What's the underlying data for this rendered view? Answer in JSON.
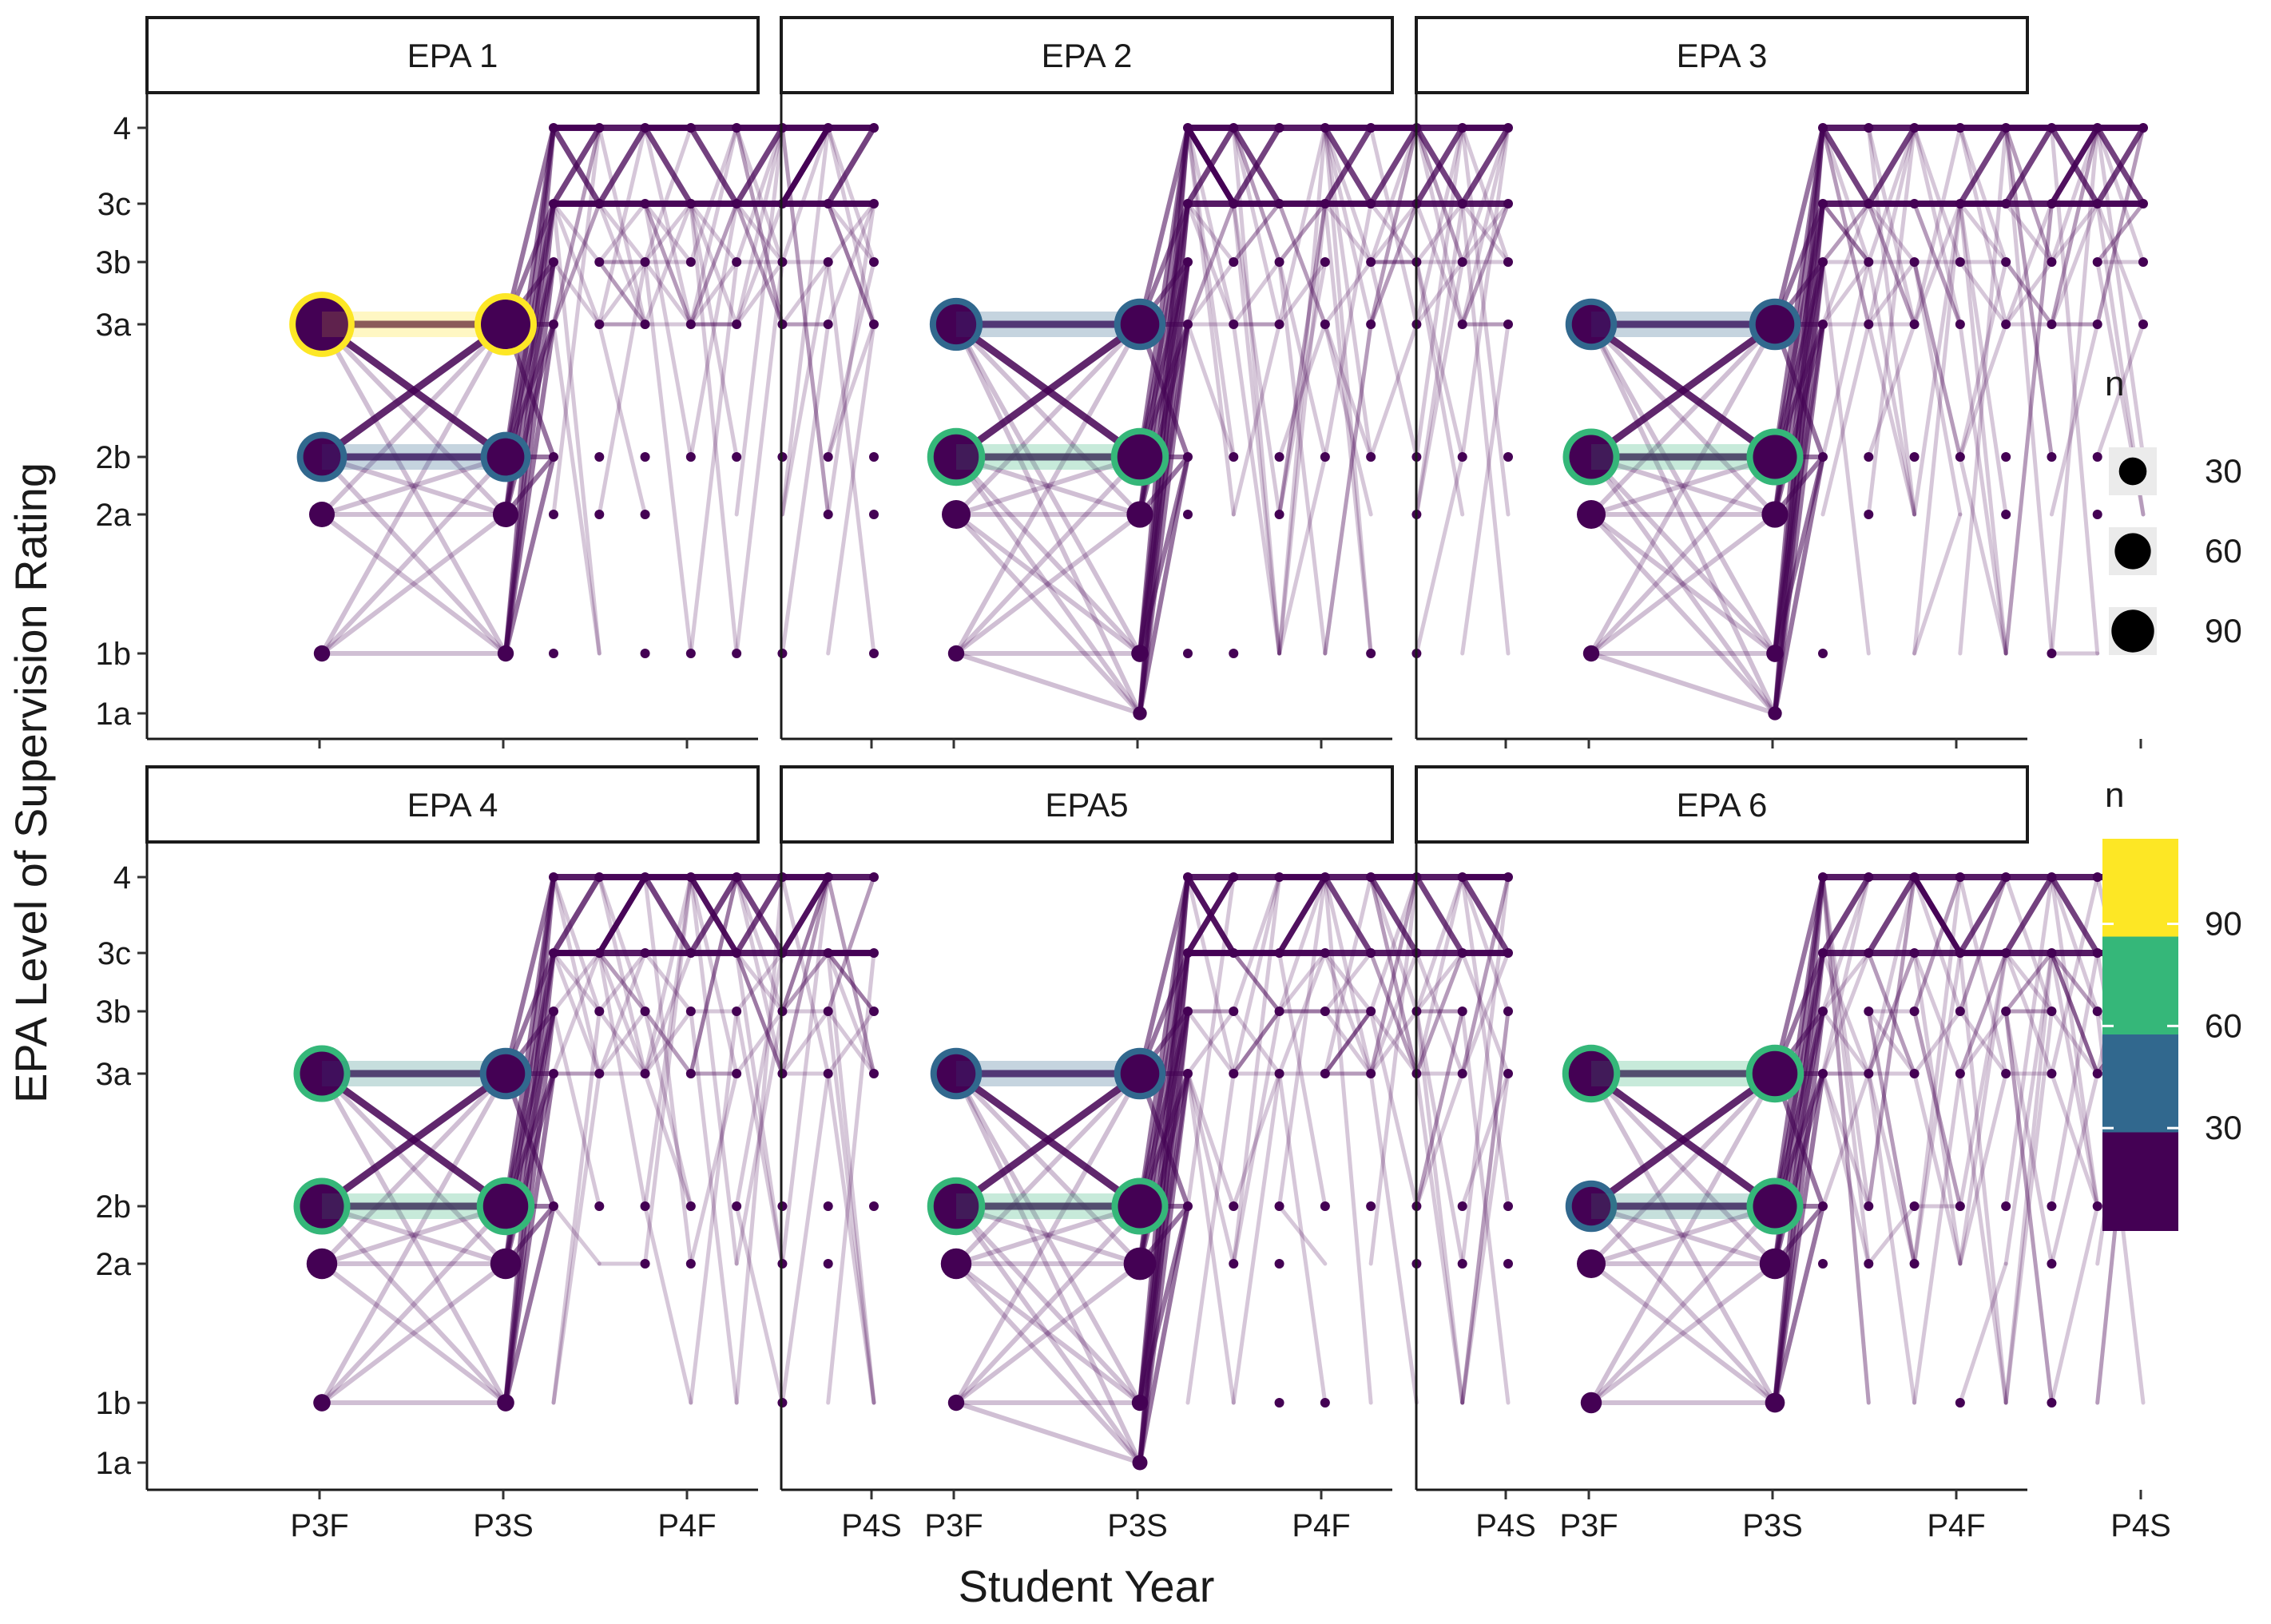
{
  "chart_data": {
    "type": "line",
    "subtype": "faceted trajectory (parallel coordinates) plot with sized and colored points",
    "xlabel": "Student Year",
    "ylabel": "EPA Level of Supervision Rating",
    "x_categories": [
      "P3F",
      "P3S",
      "P4F",
      "P4S"
    ],
    "y_levels": [
      "1a",
      "1b",
      "2a",
      "2b",
      "3a",
      "3b",
      "3c",
      "4"
    ],
    "legend_size": {
      "title": "n",
      "entries": [
        "30",
        "60",
        "90"
      ],
      "values": [
        30,
        60,
        90
      ]
    },
    "legend_color": {
      "title": "n",
      "ticks": [
        "30",
        "60",
        "90"
      ],
      "values": [
        30,
        60,
        90
      ],
      "range": [
        0,
        115
      ],
      "colors": [
        "#440154",
        "#31688e",
        "#35b779",
        "#fde725"
      ]
    },
    "line_color": "#440154",
    "facets": [
      {
        "title": "EPA 1",
        "p3f": [
          {
            "level": "3a",
            "n": 115
          },
          {
            "level": "2b",
            "n": 50
          },
          {
            "level": "2a",
            "n": 18
          },
          {
            "level": "1b",
            "n": 4
          }
        ],
        "p3s": [
          {
            "level": "3a",
            "n": 100
          },
          {
            "level": "2b",
            "n": 50
          },
          {
            "level": "2a",
            "n": 18
          },
          {
            "level": "1b",
            "n": 4
          }
        ]
      },
      {
        "title": "EPA 2",
        "p3f": [
          {
            "level": "3a",
            "n": 60
          },
          {
            "level": "2b",
            "n": 80
          },
          {
            "level": "2a",
            "n": 25
          },
          {
            "level": "1b",
            "n": 4
          }
        ],
        "p3s": [
          {
            "level": "3a",
            "n": 55
          },
          {
            "level": "2b",
            "n": 80
          },
          {
            "level": "2a",
            "n": 20
          },
          {
            "level": "1b",
            "n": 5
          },
          {
            "level": "1a",
            "n": 2
          }
        ]
      },
      {
        "title": "EPA 3",
        "p3f": [
          {
            "level": "3a",
            "n": 55
          },
          {
            "level": "2b",
            "n": 75
          },
          {
            "level": "2a",
            "n": 25
          },
          {
            "level": "1b",
            "n": 4
          }
        ],
        "p3s": [
          {
            "level": "3a",
            "n": 55
          },
          {
            "level": "2b",
            "n": 75
          },
          {
            "level": "2a",
            "n": 20
          },
          {
            "level": "1b",
            "n": 5
          },
          {
            "level": "1a",
            "n": 2
          }
        ]
      },
      {
        "title": "EPA 4",
        "p3f": [
          {
            "level": "3a",
            "n": 75
          },
          {
            "level": "2b",
            "n": 75
          },
          {
            "level": "2a",
            "n": 30
          },
          {
            "level": "1b",
            "n": 5
          }
        ],
        "p3s": [
          {
            "level": "3a",
            "n": 55
          },
          {
            "level": "2b",
            "n": 80
          },
          {
            "level": "2a",
            "n": 30
          },
          {
            "level": "1b",
            "n": 5
          }
        ]
      },
      {
        "title": "EPA5",
        "p3f": [
          {
            "level": "3a",
            "n": 55
          },
          {
            "level": "2b",
            "n": 80
          },
          {
            "level": "2a",
            "n": 30
          },
          {
            "level": "1b",
            "n": 4
          }
        ],
        "p3s": [
          {
            "level": "3a",
            "n": 55
          },
          {
            "level": "2b",
            "n": 75
          },
          {
            "level": "2a",
            "n": 35
          },
          {
            "level": "1b",
            "n": 4
          },
          {
            "level": "1a",
            "n": 3
          }
        ]
      },
      {
        "title": "EPA 6",
        "p3f": [
          {
            "level": "3a",
            "n": 80
          },
          {
            "level": "2b",
            "n": 55
          },
          {
            "level": "2a",
            "n": 25
          },
          {
            "level": "1b",
            "n": 10
          }
        ],
        "p3s": [
          {
            "level": "3a",
            "n": 80
          },
          {
            "level": "2b",
            "n": 75
          },
          {
            "level": "2a",
            "n": 30
          },
          {
            "level": "1b",
            "n": 8
          }
        ]
      }
    ]
  }
}
